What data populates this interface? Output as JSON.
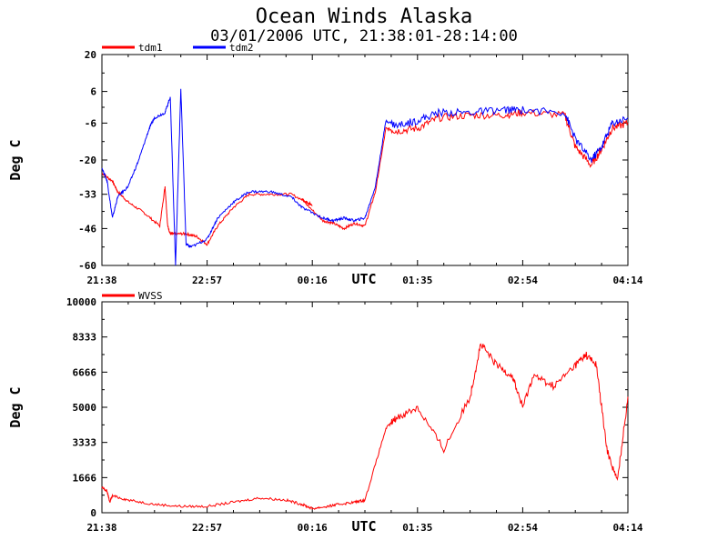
{
  "title": "Ocean Winds Alaska",
  "subtitle": "03/01/2006  UTC, 21:38:01-28:14:00",
  "chart_data": [
    {
      "type": "line",
      "ylabel": "Deg C",
      "xlabel": "UTC",
      "ylim": [
        -60,
        20
      ],
      "yticks": [
        "20",
        "6",
        "-6",
        "-20",
        "-33",
        "-46",
        "-60"
      ],
      "ytick_values": [
        20,
        6,
        -6,
        -20,
        -33,
        -46,
        -60
      ],
      "xticks": [
        "21:38",
        "22:57",
        "00:16",
        "01:35",
        "02:54",
        "04:14"
      ],
      "legend_position": "top-left",
      "series": [
        {
          "name": "tdm1",
          "color": "#ff0000",
          "x": [
            0,
            0.02,
            0.03,
            0.05,
            0.08,
            0.11,
            0.12,
            0.125,
            0.13,
            0.14,
            0.16,
            0.18,
            0.2,
            0.22,
            0.25,
            0.28,
            0.32,
            0.36,
            0.4,
            0.38,
            0.42,
            0.44,
            0.46,
            0.48,
            0.5,
            0.52,
            0.54,
            0.56,
            0.6,
            0.64,
            0.7,
            0.76,
            0.8,
            0.88,
            0.9,
            0.93,
            0.95,
            0.97,
            1.0
          ],
          "y": [
            -25,
            -28,
            -32,
            -36,
            -40,
            -45,
            -30,
            -45,
            -48,
            -48,
            -48,
            -49,
            -52,
            -45,
            -38,
            -33,
            -33,
            -33,
            -37,
            -35,
            -43,
            -44,
            -46,
            -44,
            -45,
            -32,
            -8,
            -9,
            -8,
            -4,
            -3,
            -3,
            -2,
            -3,
            -15,
            -22,
            -16,
            -8,
            -6
          ]
        },
        {
          "name": "tdm2",
          "color": "#0000ff",
          "x": [
            0,
            0.01,
            0.02,
            0.03,
            0.05,
            0.07,
            0.09,
            0.1,
            0.12,
            0.13,
            0.14,
            0.15,
            0.16,
            0.17,
            0.2,
            0.22,
            0.25,
            0.28,
            0.32,
            0.36,
            0.38,
            0.42,
            0.44,
            0.46,
            0.48,
            0.5,
            0.52,
            0.54,
            0.56,
            0.6,
            0.64,
            0.7,
            0.76,
            0.8,
            0.88,
            0.9,
            0.93,
            0.95,
            0.97,
            1.0
          ],
          "y": [
            -23,
            -28,
            -42,
            -34,
            -30,
            -20,
            -8,
            -4,
            -2,
            4,
            -60,
            7,
            -52,
            -53,
            -50,
            -42,
            -36,
            -32,
            -32,
            -34,
            -38,
            -42,
            -43,
            -42,
            -43,
            -42,
            -30,
            -5,
            -7,
            -5,
            -2,
            -2,
            -1,
            -1,
            -2,
            -12,
            -20,
            -15,
            -6,
            -4
          ]
        }
      ]
    },
    {
      "type": "line",
      "ylabel": "Deg C",
      "xlabel": "UTC",
      "ylim": [
        0,
        10000
      ],
      "yticks": [
        "10000",
        "8333",
        "6666",
        "5000",
        "3333",
        "1666",
        "0"
      ],
      "ytick_values": [
        10000,
        8333,
        6666,
        5000,
        3333,
        1666,
        0
      ],
      "xticks": [
        "21:38",
        "22:57",
        "00:16",
        "01:35",
        "02:54",
        "04:14"
      ],
      "legend_position": "top-left",
      "series": [
        {
          "name": "WVSS",
          "color": "#ff0000",
          "x": [
            0,
            0.01,
            0.015,
            0.02,
            0.05,
            0.1,
            0.15,
            0.2,
            0.25,
            0.3,
            0.35,
            0.38,
            0.4,
            0.43,
            0.45,
            0.48,
            0.5,
            0.54,
            0.56,
            0.6,
            0.65,
            0.7,
            0.72,
            0.75,
            0.78,
            0.8,
            0.82,
            0.86,
            0.9,
            0.92,
            0.94,
            0.96,
            0.98,
            1.0
          ],
          "y": [
            1200,
            1000,
            500,
            800,
            600,
            400,
            300,
            300,
            500,
            700,
            600,
            400,
            200,
            300,
            400,
            500,
            600,
            4000,
            4500,
            5000,
            3000,
            5500,
            8000,
            7000,
            6500,
            5000,
            6500,
            6000,
            7000,
            7500,
            7000,
            3000,
            1500,
            5500
          ]
        }
      ]
    }
  ]
}
